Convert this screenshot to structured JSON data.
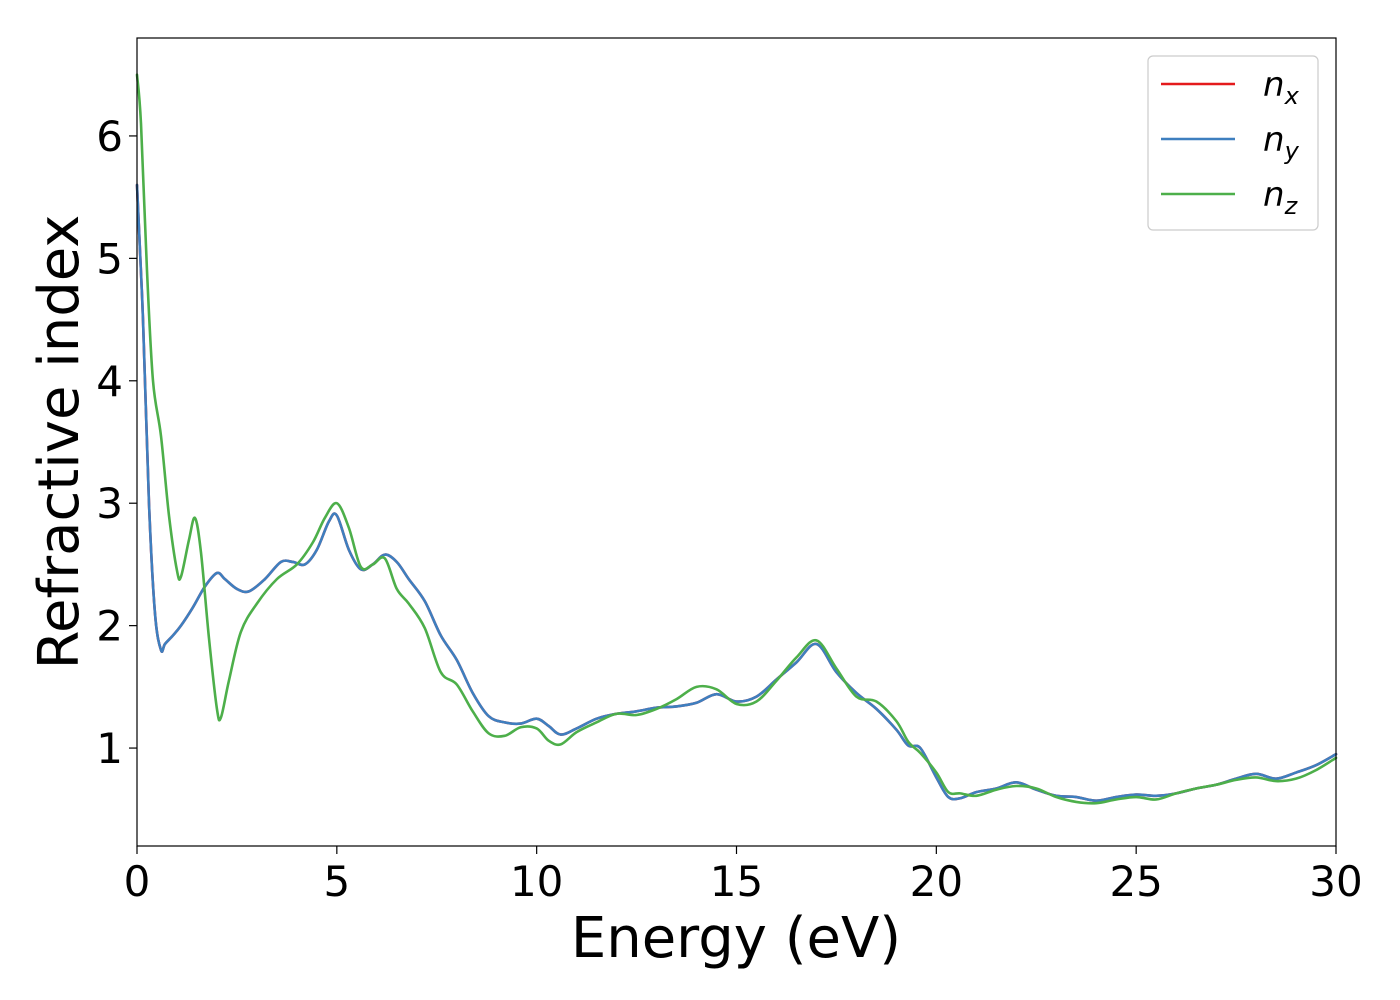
{
  "chart_data": {
    "type": "line",
    "title": "",
    "xlabel": "Energy (eV)",
    "ylabel": "Refractive index",
    "xlim": [
      0,
      30
    ],
    "ylim": [
      0.2,
      6.8
    ],
    "xticks": [
      0,
      5,
      10,
      15,
      20,
      25,
      30
    ],
    "yticks": [
      1,
      2,
      3,
      4,
      5,
      6
    ],
    "grid": false,
    "legend_position": "top-right",
    "series": [
      {
        "name": "n_x",
        "label_base": "n",
        "label_sub": "x",
        "color": "#e41a1c",
        "x": [
          0,
          0.15,
          0.3,
          0.45,
          0.6,
          0.7,
          0.9,
          1.1,
          1.4,
          1.7,
          2.0,
          2.2,
          2.5,
          2.8,
          3.2,
          3.6,
          3.9,
          4.2,
          4.5,
          4.8,
          5.0,
          5.3,
          5.6,
          5.9,
          6.2,
          6.5,
          6.8,
          7.2,
          7.6,
          8.0,
          8.4,
          8.8,
          9.2,
          9.6,
          10.0,
          10.3,
          10.6,
          11.0,
          11.5,
          12.0,
          12.5,
          13.0,
          13.5,
          14.0,
          14.5,
          15.0,
          15.5,
          16.0,
          16.5,
          17.0,
          17.5,
          18.0,
          18.5,
          19.0,
          19.3,
          19.6,
          20.0,
          20.3,
          20.6,
          21.0,
          21.5,
          22.0,
          22.5,
          23.0,
          23.5,
          24.0,
          24.5,
          25.0,
          25.5,
          26.0,
          26.5,
          27.0,
          27.5,
          28.0,
          28.5,
          29.0,
          29.5,
          30.0
        ],
        "y": [
          5.6,
          4.5,
          3.0,
          2.1,
          1.8,
          1.85,
          1.92,
          2.0,
          2.15,
          2.32,
          2.43,
          2.38,
          2.3,
          2.28,
          2.38,
          2.52,
          2.52,
          2.5,
          2.62,
          2.85,
          2.9,
          2.62,
          2.46,
          2.5,
          2.58,
          2.52,
          2.38,
          2.2,
          1.92,
          1.72,
          1.45,
          1.26,
          1.21,
          1.2,
          1.24,
          1.18,
          1.11,
          1.16,
          1.24,
          1.28,
          1.3,
          1.33,
          1.34,
          1.37,
          1.44,
          1.38,
          1.42,
          1.56,
          1.7,
          1.85,
          1.62,
          1.45,
          1.32,
          1.15,
          1.02,
          1.0,
          0.76,
          0.6,
          0.59,
          0.64,
          0.67,
          0.72,
          0.66,
          0.61,
          0.6,
          0.57,
          0.6,
          0.62,
          0.61,
          0.63,
          0.67,
          0.7,
          0.75,
          0.79,
          0.75,
          0.8,
          0.86,
          0.95
        ]
      },
      {
        "name": "n_y",
        "label_base": "n",
        "label_sub": "y",
        "color": "#3e7fbf",
        "x": [
          0,
          0.15,
          0.3,
          0.45,
          0.6,
          0.7,
          0.9,
          1.1,
          1.4,
          1.7,
          2.0,
          2.2,
          2.5,
          2.8,
          3.2,
          3.6,
          3.9,
          4.2,
          4.5,
          4.8,
          5.0,
          5.3,
          5.6,
          5.9,
          6.2,
          6.5,
          6.8,
          7.2,
          7.6,
          8.0,
          8.4,
          8.8,
          9.2,
          9.6,
          10.0,
          10.3,
          10.6,
          11.0,
          11.5,
          12.0,
          12.5,
          13.0,
          13.5,
          14.0,
          14.5,
          15.0,
          15.5,
          16.0,
          16.5,
          17.0,
          17.5,
          18.0,
          18.5,
          19.0,
          19.3,
          19.6,
          20.0,
          20.3,
          20.6,
          21.0,
          21.5,
          22.0,
          22.5,
          23.0,
          23.5,
          24.0,
          24.5,
          25.0,
          25.5,
          26.0,
          26.5,
          27.0,
          27.5,
          28.0,
          28.5,
          29.0,
          29.5,
          30.0
        ],
        "y": [
          5.6,
          4.5,
          3.0,
          2.1,
          1.8,
          1.85,
          1.92,
          2.0,
          2.15,
          2.32,
          2.43,
          2.38,
          2.3,
          2.28,
          2.38,
          2.52,
          2.52,
          2.5,
          2.62,
          2.85,
          2.9,
          2.62,
          2.46,
          2.5,
          2.58,
          2.52,
          2.38,
          2.2,
          1.92,
          1.72,
          1.45,
          1.26,
          1.21,
          1.2,
          1.24,
          1.18,
          1.11,
          1.16,
          1.24,
          1.28,
          1.3,
          1.33,
          1.34,
          1.37,
          1.44,
          1.38,
          1.42,
          1.56,
          1.7,
          1.85,
          1.62,
          1.45,
          1.32,
          1.15,
          1.02,
          1.0,
          0.76,
          0.6,
          0.59,
          0.64,
          0.67,
          0.72,
          0.66,
          0.61,
          0.6,
          0.57,
          0.6,
          0.62,
          0.61,
          0.63,
          0.67,
          0.7,
          0.75,
          0.79,
          0.75,
          0.8,
          0.86,
          0.95
        ]
      },
      {
        "name": "n_z",
        "label_base": "n",
        "label_sub": "z",
        "color": "#4daf4a",
        "x": [
          0,
          0.1,
          0.25,
          0.4,
          0.6,
          0.8,
          1.0,
          1.1,
          1.3,
          1.45,
          1.6,
          1.8,
          2.0,
          2.1,
          2.3,
          2.6,
          3.0,
          3.5,
          4.0,
          4.4,
          4.7,
          5.0,
          5.3,
          5.6,
          5.9,
          6.2,
          6.5,
          6.8,
          7.2,
          7.6,
          8.0,
          8.4,
          8.8,
          9.2,
          9.6,
          10.0,
          10.3,
          10.6,
          11.0,
          11.5,
          12.0,
          12.5,
          13.0,
          13.5,
          14.0,
          14.5,
          15.0,
          15.5,
          16.0,
          16.5,
          17.0,
          17.5,
          18.0,
          18.5,
          19.0,
          19.3,
          19.6,
          20.0,
          20.3,
          20.6,
          21.0,
          21.5,
          22.0,
          22.5,
          23.0,
          23.5,
          24.0,
          24.5,
          25.0,
          25.5,
          26.0,
          26.5,
          27.0,
          27.5,
          28.0,
          28.5,
          29.0,
          29.5,
          30.0
        ],
        "y": [
          6.5,
          6.1,
          4.9,
          4.0,
          3.55,
          2.9,
          2.45,
          2.4,
          2.7,
          2.88,
          2.6,
          1.9,
          1.32,
          1.25,
          1.55,
          1.95,
          2.18,
          2.38,
          2.5,
          2.68,
          2.88,
          3.0,
          2.8,
          2.48,
          2.5,
          2.55,
          2.3,
          2.18,
          1.98,
          1.62,
          1.52,
          1.3,
          1.12,
          1.1,
          1.17,
          1.16,
          1.06,
          1.03,
          1.13,
          1.21,
          1.28,
          1.27,
          1.32,
          1.4,
          1.5,
          1.48,
          1.36,
          1.38,
          1.55,
          1.74,
          1.88,
          1.65,
          1.42,
          1.38,
          1.22,
          1.05,
          0.96,
          0.8,
          0.64,
          0.63,
          0.61,
          0.66,
          0.69,
          0.67,
          0.6,
          0.56,
          0.55,
          0.58,
          0.6,
          0.58,
          0.63,
          0.67,
          0.7,
          0.74,
          0.76,
          0.73,
          0.75,
          0.82,
          0.92
        ]
      }
    ]
  }
}
